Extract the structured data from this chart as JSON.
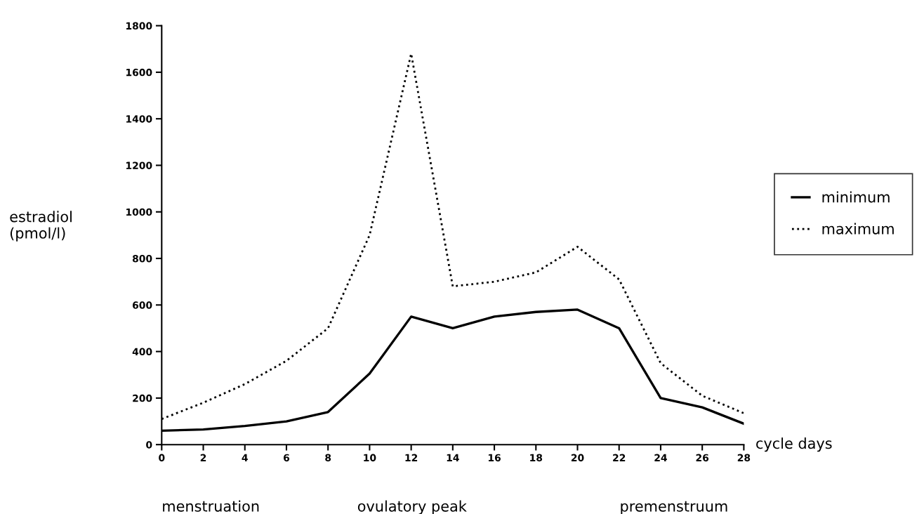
{
  "chart_data": {
    "type": "line",
    "xlabel": "cycle days",
    "ylabel": "estradiol\n(pmol/l)",
    "x": [
      0,
      2,
      4,
      6,
      8,
      10,
      12,
      14,
      16,
      18,
      20,
      22,
      24,
      26,
      28
    ],
    "series": [
      {
        "name": "minimum",
        "color": "#000000",
        "line_style": "solid",
        "values": [
          60,
          65,
          80,
          100,
          140,
          305,
          550,
          500,
          550,
          570,
          580,
          500,
          200,
          160,
          90
        ]
      },
      {
        "name": "maximum",
        "color": "#000000",
        "line_style": "dotted",
        "values": [
          110,
          180,
          260,
          360,
          500,
          900,
          1680,
          680,
          700,
          740,
          850,
          710,
          350,
          210,
          135
        ]
      }
    ],
    "xlim": [
      0,
      28
    ],
    "xticks": [
      0,
      2,
      4,
      6,
      8,
      10,
      12,
      14,
      16,
      18,
      20,
      22,
      24,
      26,
      28
    ],
    "ylim": [
      0,
      1800
    ],
    "yticks": [
      0,
      200,
      400,
      600,
      800,
      1000,
      1200,
      1400,
      1600,
      1800
    ],
    "grid": false,
    "legend": "right",
    "marker": "none",
    "annotations": [
      "menstruation",
      "ovulatory peak",
      "premenstruum"
    ]
  }
}
